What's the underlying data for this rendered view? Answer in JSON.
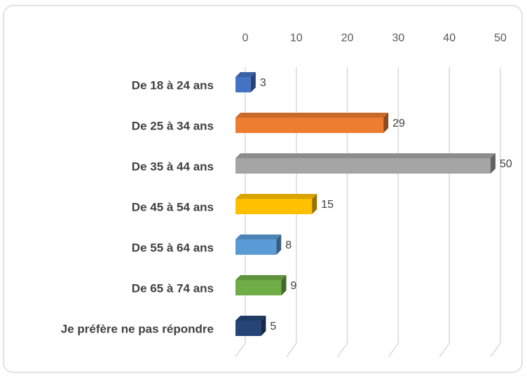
{
  "chart_data": {
    "type": "bar3d-horizontal",
    "categories": [
      "De 18 à 24 ans",
      "De 25 à 34 ans",
      "De 35 à 44 ans",
      "De 45 à 54 ans",
      "De 55 à 64 ans",
      "De 65 à 74 ans",
      "Je préfère ne pas répondre"
    ],
    "values": [
      3,
      29,
      50,
      15,
      8,
      9,
      5
    ],
    "colors": [
      "#4472c4",
      "#ed7d31",
      "#a5a5a5",
      "#ffc000",
      "#5b9bd5",
      "#70ad47",
      "#264478"
    ],
    "xlim": [
      0,
      50
    ],
    "xticks": [
      0,
      10,
      20,
      30,
      40,
      50
    ],
    "grid": true
  }
}
